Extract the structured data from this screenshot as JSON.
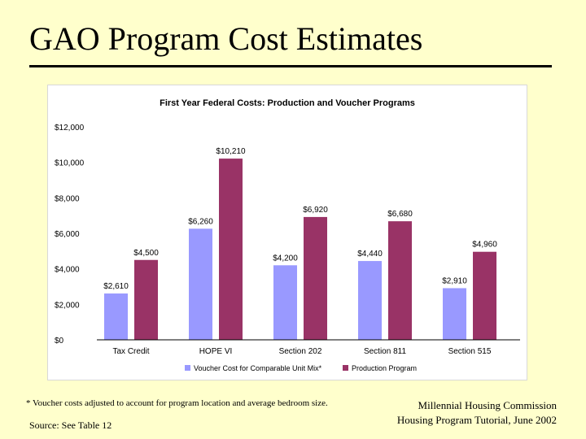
{
  "slide": {
    "title": "GAO Program Cost Estimates",
    "footnote": "* Voucher costs adjusted to account for program location and average bedroom size.",
    "source": "Source: See Table 12",
    "credit_line1": "Millennial Housing Commission",
    "credit_line2": "Housing Program Tutorial, June 2002"
  },
  "colors": {
    "background": "#FFFFCC",
    "voucher": "#9999FF",
    "production": "#993366"
  },
  "chart_data": {
    "type": "bar",
    "title": "First Year Federal Costs: Production and Voucher Programs",
    "categories": [
      "Tax Credit",
      "HOPE VI",
      "Section 202",
      "Section 811",
      "Section 515"
    ],
    "series": [
      {
        "name": "Voucher Cost for Comparable Unit Mix*",
        "values": [
          2610,
          6260,
          4200,
          4440,
          2910
        ],
        "labels": [
          "$2,610",
          "$6,260",
          "$4,200",
          "$4,440",
          "$2,910"
        ]
      },
      {
        "name": "Production Program",
        "values": [
          4500,
          10210,
          6920,
          6680,
          4960
        ],
        "labels": [
          "$4,500",
          "$10,210",
          "$6,920",
          "$6,680",
          "$4,960"
        ]
      }
    ],
    "yticks": [
      0,
      2000,
      4000,
      6000,
      8000,
      10000,
      12000
    ],
    "ytick_labels": [
      "$0",
      "$2,000",
      "$4,000",
      "$6,000",
      "$8,000",
      "$10,000",
      "$12,000"
    ],
    "ylim": [
      0,
      12000
    ],
    "xlabel": "",
    "ylabel": "",
    "grid": false,
    "legend_position": "bottom"
  }
}
